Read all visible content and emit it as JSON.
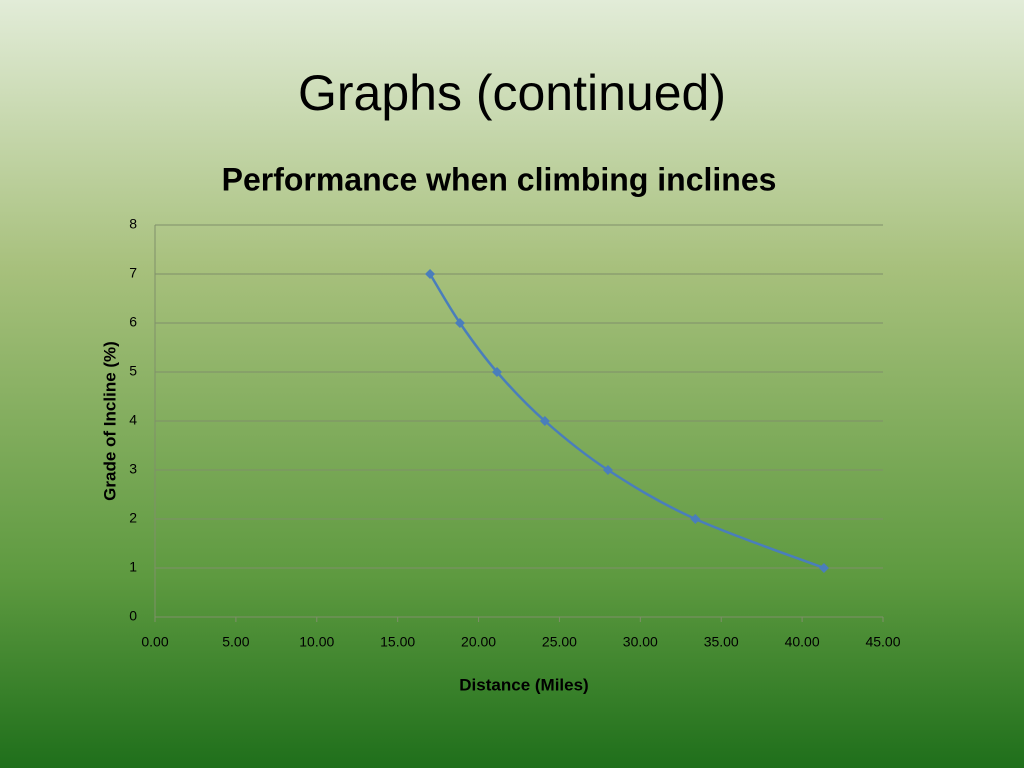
{
  "slide_title": "Graphs (continued)",
  "chart_data": {
    "type": "line",
    "title": "Performance when climbing inclines",
    "x_label": "Distance (Miles)",
    "y_label": "Grade of Incline (%)",
    "x": [
      17.0,
      18.85,
      21.14,
      24.1,
      28.0,
      33.4,
      41.35
    ],
    "series": [
      {
        "name": "Grade of Incline (%)",
        "color": "#4a7ebb",
        "values": [
          7,
          6,
          5,
          4,
          3,
          2,
          1
        ]
      }
    ],
    "xlim": [
      0,
      45
    ],
    "xticks": [
      {
        "value": 0,
        "label": "0.00"
      },
      {
        "value": 5,
        "label": "5.00"
      },
      {
        "value": 10,
        "label": "10.00"
      },
      {
        "value": 15,
        "label": "15.00"
      },
      {
        "value": 20,
        "label": "20.00"
      },
      {
        "value": 25,
        "label": "25.00"
      },
      {
        "value": 30,
        "label": "30.00"
      },
      {
        "value": 35,
        "label": "35.00"
      },
      {
        "value": 40,
        "label": "40.00"
      },
      {
        "value": 45,
        "label": "45.00"
      }
    ],
    "ylim": [
      0,
      8
    ],
    "yticks": [
      0,
      1,
      2,
      3,
      4,
      5,
      6,
      7,
      8
    ],
    "grid": true,
    "smooth": true,
    "marker": "diamond"
  }
}
